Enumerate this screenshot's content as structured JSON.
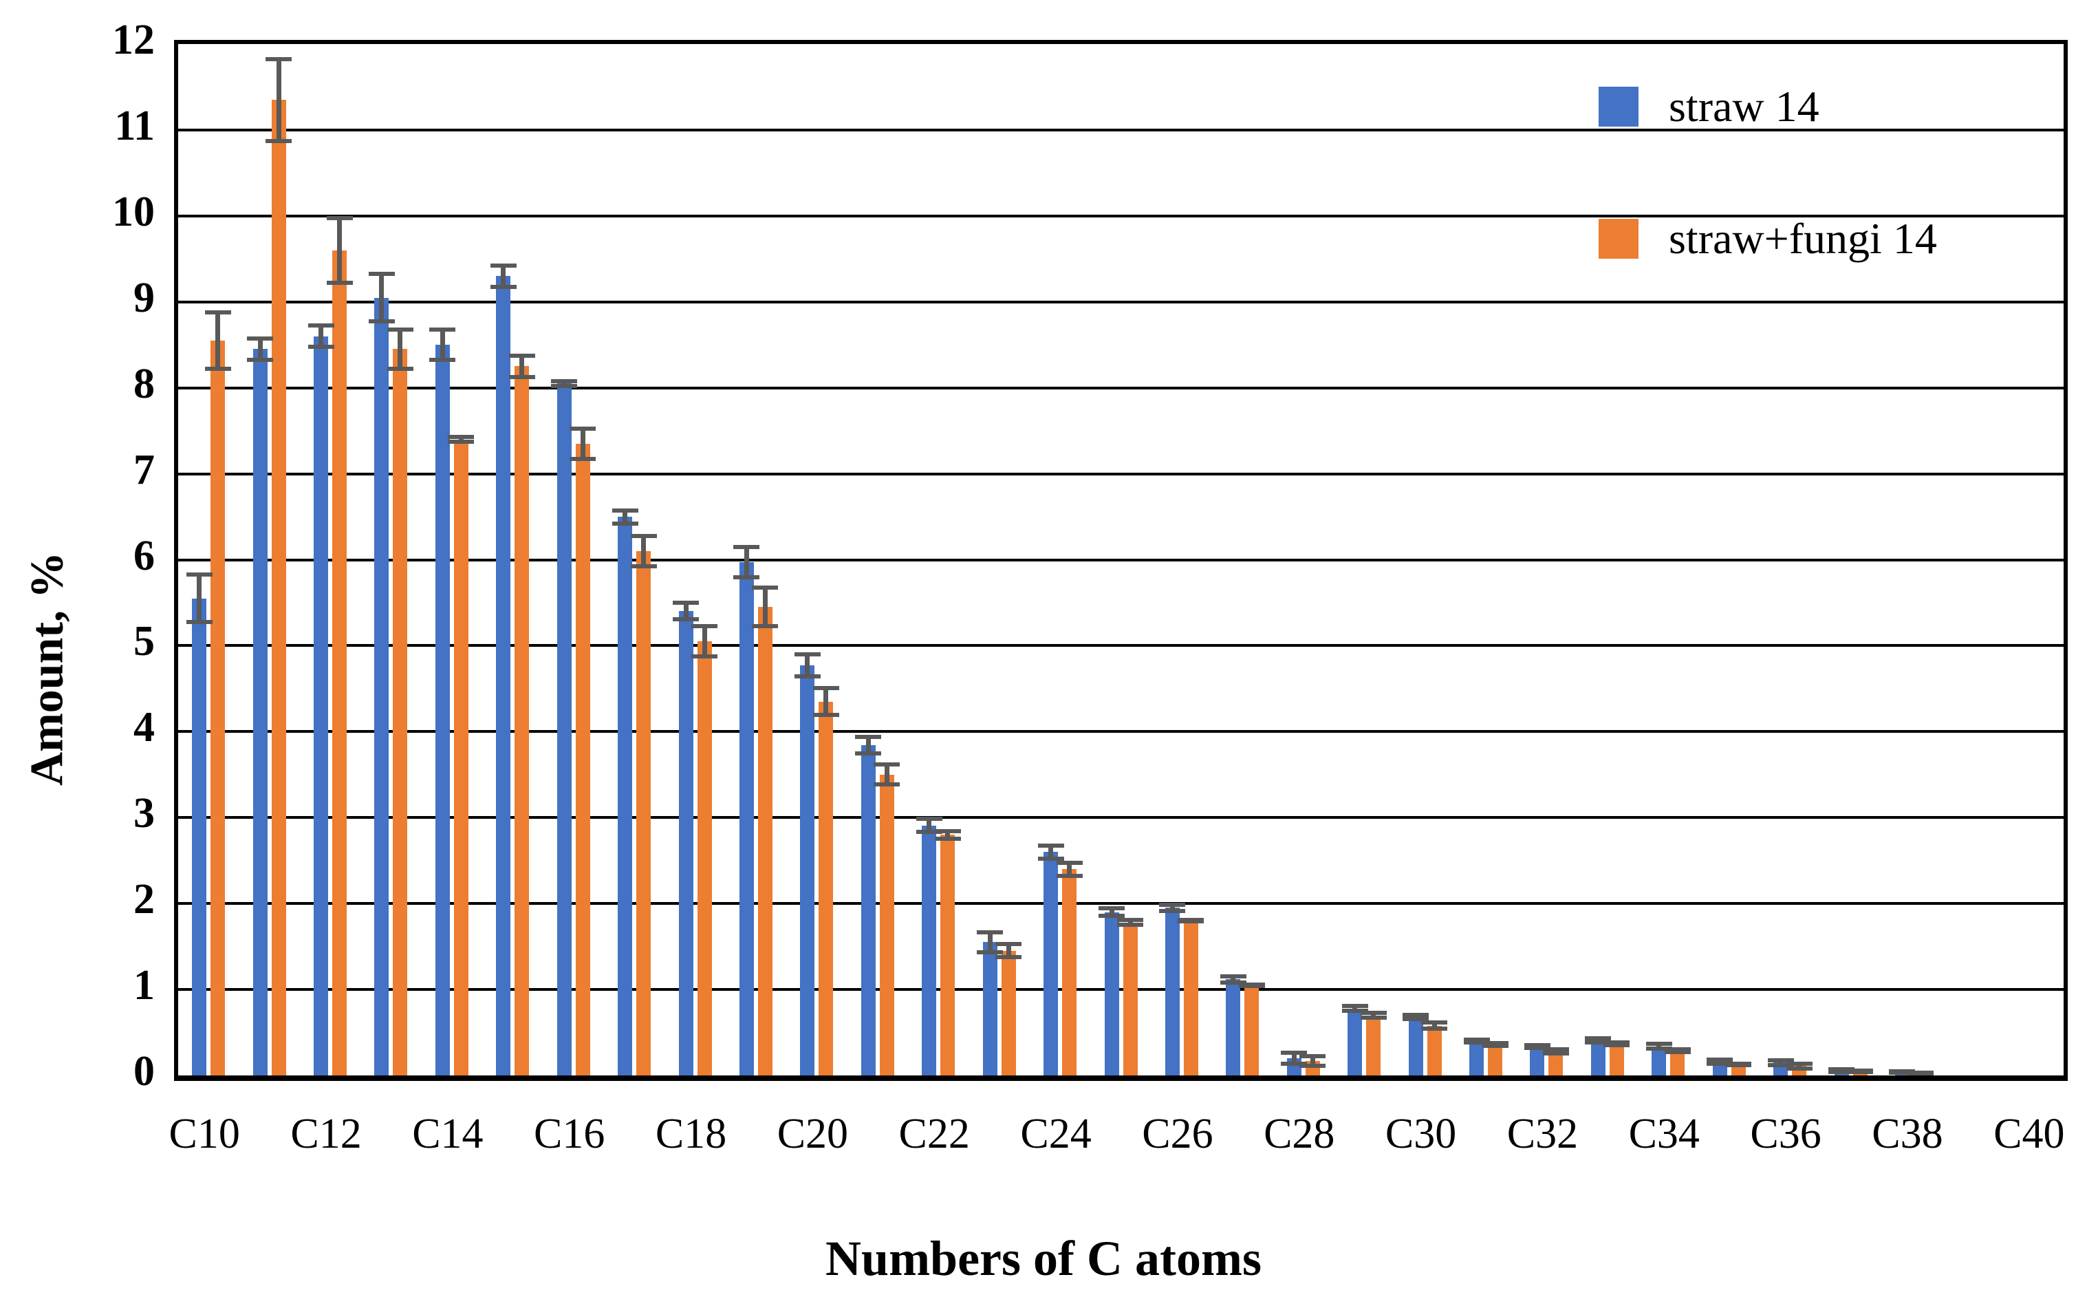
{
  "page": {
    "background": "#ffffff"
  },
  "chart_data": {
    "type": "bar",
    "title": "",
    "xlabel": "Numbers of C atoms",
    "ylabel": "Amount, %",
    "ylim": [
      0,
      12
    ],
    "ytick_step": 1,
    "yticks": [
      0,
      1,
      2,
      3,
      4,
      5,
      6,
      7,
      8,
      9,
      10,
      11,
      12
    ],
    "grid": "horizontal",
    "grid_color": "#000000",
    "legend_position": "top-right-inside",
    "error_bar_color": "#595959",
    "categories": [
      "C10",
      "C11",
      "C12",
      "C13",
      "C14",
      "C15",
      "C16",
      "C17",
      "C18",
      "C19",
      "C20",
      "C21",
      "C22",
      "C23",
      "C24",
      "C25",
      "C26",
      "C27",
      "C28",
      "C29",
      "C30",
      "C31",
      "C32",
      "C33",
      "C34",
      "C35",
      "C36",
      "C37",
      "C38",
      "C39",
      "C40"
    ],
    "xtick_labels_shown": [
      "C10",
      "C12",
      "C14",
      "C16",
      "C18",
      "C20",
      "C22",
      "C24",
      "C26",
      "C28",
      "C30",
      "C32",
      "C34",
      "C36",
      "C38",
      "C40"
    ],
    "series": [
      {
        "name": "straw 14",
        "color": "#4472C4",
        "values": [
          5.55,
          8.45,
          8.6,
          9.05,
          8.5,
          9.3,
          8.05,
          6.5,
          5.4,
          5.97,
          4.77,
          3.84,
          2.91,
          1.55,
          2.6,
          1.9,
          1.95,
          1.12,
          0.2,
          0.78,
          0.68,
          0.4,
          0.34,
          0.41,
          0.34,
          0.16,
          0.15,
          0.06,
          0.04,
          0,
          0
        ],
        "errors": [
          0.3,
          0.15,
          0.15,
          0.3,
          0.2,
          0.15,
          0.05,
          0.1,
          0.12,
          0.2,
          0.15,
          0.12,
          0.1,
          0.14,
          0.1,
          0.07,
          0.06,
          0.06,
          0.09,
          0.05,
          0.05,
          0.04,
          0.04,
          0.05,
          0.05,
          0.05,
          0.05,
          0.04,
          0.03,
          0,
          0
        ]
      },
      {
        "name": "straw+fungi 14",
        "color": "#ED7D31",
        "values": [
          8.55,
          11.35,
          9.6,
          8.45,
          7.4,
          8.25,
          7.35,
          6.1,
          5.05,
          5.45,
          4.35,
          3.5,
          2.8,
          1.45,
          2.4,
          1.78,
          1.8,
          1.05,
          0.17,
          0.7,
          0.58,
          0.36,
          0.28,
          0.37,
          0.29,
          0.13,
          0.11,
          0.05,
          0.03,
          0,
          0
        ],
        "errors": [
          0.35,
          0.5,
          0.4,
          0.25,
          0.05,
          0.15,
          0.2,
          0.2,
          0.2,
          0.25,
          0.18,
          0.14,
          0.07,
          0.1,
          0.1,
          0.05,
          0.03,
          0.03,
          0.08,
          0.05,
          0.06,
          0.04,
          0.05,
          0.04,
          0.04,
          0.03,
          0.05,
          0.03,
          0.02,
          0,
          0
        ]
      }
    ]
  }
}
